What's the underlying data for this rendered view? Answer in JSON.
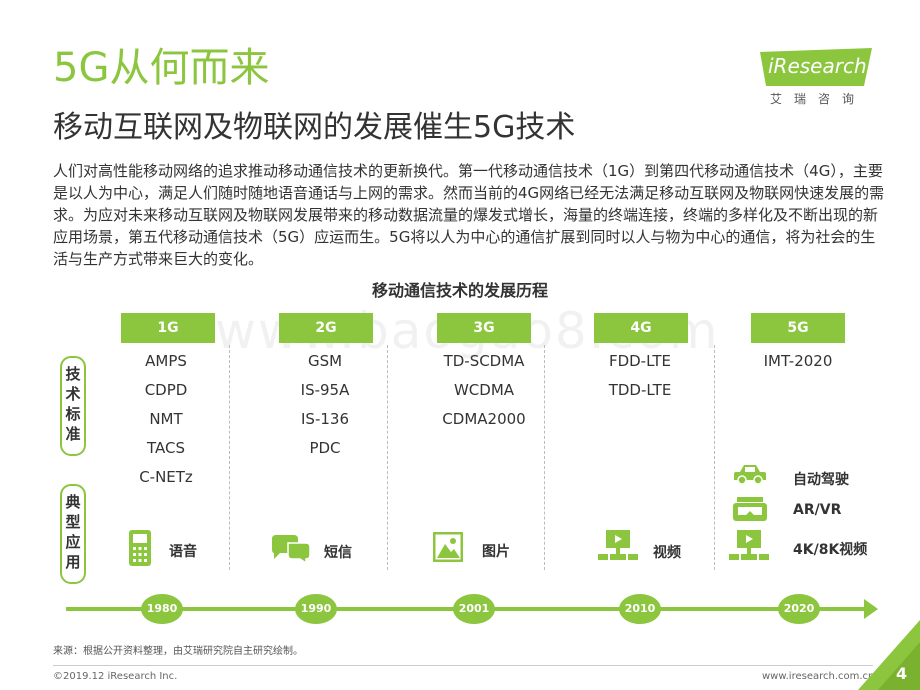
{
  "header": {
    "title": "5G从何而来",
    "subtitle": "移动互联网及物联网的发展催生5G技术"
  },
  "logo": {
    "text": "iResearch",
    "subtext": "艾瑞咨询"
  },
  "intro": "人们对高性能移动网络的追求推动移动通信技术的更新换代。第一代移动通信技术（1G）到第四代移动通信技术（4G），主要是以人为中心，满足人们随时随地语音通话与上网的需求。然而当前的4G网络已经无法满足移动互联网及物联网快速发展的需求。为应对未来移动互联网及物联网发展带来的移动数据流量的爆发式增长，海量的终端连接，终端的多样化及不断出现的新应用场景，第五代移动通信技术（5G）应运而生。5G将以人为中心的通信扩展到同时以人与物为中心的通信，将为社会的生活与生产方式带来巨大的变化。",
  "watermark": "www.baogao8.com",
  "chart": {
    "title": "移动通信技术的发展历程",
    "side_labels": {
      "tech": "技术标准",
      "apps": "典型应用"
    },
    "generations": [
      {
        "label": "1G",
        "standards": [
          "AMPS",
          "CDPD",
          "NMT",
          "TACS",
          "C-NETz"
        ],
        "year": "1980",
        "apps": [
          {
            "icon": "phone-icon",
            "label": "语音"
          }
        ]
      },
      {
        "label": "2G",
        "standards": [
          "GSM",
          "IS-95A",
          "IS-136",
          "PDC"
        ],
        "year": "1990",
        "apps": [
          {
            "icon": "chat-bubbles-icon",
            "label": "短信"
          }
        ]
      },
      {
        "label": "3G",
        "standards": [
          "TD-SCDMA",
          "WCDMA",
          "CDMA2000"
        ],
        "year": "2001",
        "apps": [
          {
            "icon": "picture-icon",
            "label": "图片"
          }
        ]
      },
      {
        "label": "4G",
        "standards": [
          "FDD-LTE",
          "TDD-LTE"
        ],
        "year": "2010",
        "apps": [
          {
            "icon": "video-screen-icon",
            "label": "视频"
          }
        ]
      },
      {
        "label": "5G",
        "standards": [
          "IMT-2020"
        ],
        "year": "2020",
        "apps": [
          {
            "icon": "car-icon",
            "label": "自动驾驶"
          },
          {
            "icon": "vr-headset-icon",
            "label": "AR/VR"
          },
          {
            "icon": "video-screen-icon",
            "label": "4K/8K视频"
          }
        ]
      }
    ]
  },
  "source": "来源：根据公开资料整理，由艾瑞研究院自主研究绘制。",
  "footer": {
    "copyright": "©2019.12 iResearch Inc.",
    "site": "www.iresearch.com.cn",
    "page": "4"
  },
  "colors": {
    "accent": "#8cc63f"
  }
}
